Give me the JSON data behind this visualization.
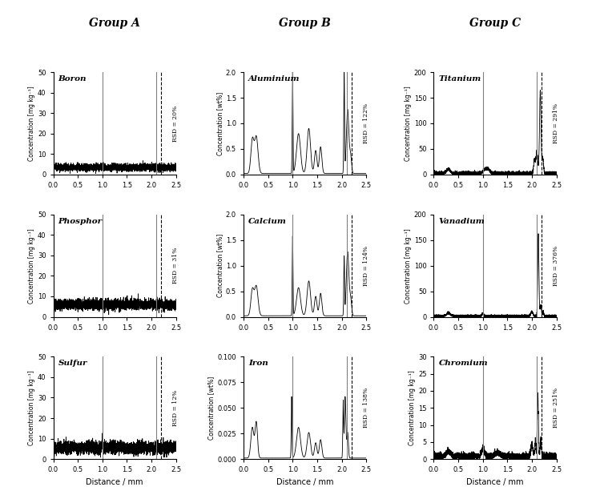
{
  "group_titles": [
    "Group A",
    "Group B",
    "Group C"
  ],
  "subplot_titles": [
    [
      "Boron",
      "Phosphor",
      "Sulfur"
    ],
    [
      "Aluminium",
      "Calcium",
      "Iron"
    ],
    [
      "Titanium",
      "Vanadium",
      "Chromium"
    ]
  ],
  "ylabels_A": "Concentration [mg kg⁻¹]",
  "ylabels_B": "Concentration [wt%]",
  "ylabels_C": "Concentration [mg kg⁻¹]",
  "xlabel": "Distance / mm",
  "rsd_labels": [
    [
      "RSD = 20%",
      "RSD = 31%",
      "RSD = 12%"
    ],
    [
      "RSD = 122%",
      "RSD = 124%",
      "RSD = 138%"
    ],
    [
      "RSD = 291%",
      "RSD = 376%",
      "RSD = 251%"
    ]
  ],
  "ylims": [
    [
      [
        0,
        50
      ],
      [
        0,
        50
      ],
      [
        0,
        50
      ]
    ],
    [
      [
        0,
        2.0
      ],
      [
        0,
        2.0
      ],
      [
        0,
        0.1
      ]
    ],
    [
      [
        0,
        200
      ],
      [
        0,
        200
      ],
      [
        0,
        30
      ]
    ]
  ],
  "yticks": [
    [
      [
        0,
        10,
        20,
        30,
        40,
        50
      ],
      [
        0,
        10,
        20,
        30,
        40,
        50
      ],
      [
        0,
        10,
        20,
        30,
        40,
        50
      ]
    ],
    [
      [
        0.0,
        0.5,
        1.0,
        1.5,
        2.0
      ],
      [
        0.0,
        0.5,
        1.0,
        1.5,
        2.0
      ],
      [
        0.0,
        0.025,
        0.05,
        0.075,
        0.1
      ]
    ],
    [
      [
        0,
        50,
        100,
        150,
        200
      ],
      [
        0,
        50,
        100,
        150,
        200
      ],
      [
        0,
        5,
        10,
        15,
        20,
        25,
        30
      ]
    ]
  ],
  "solid_vline1": 1.0,
  "solid_vline2": 2.1,
  "dashed_vline": 2.2,
  "xlim": [
    0.0,
    2.5
  ],
  "xticks": [
    0.0,
    0.5,
    1.0,
    1.5,
    2.0,
    2.5
  ]
}
